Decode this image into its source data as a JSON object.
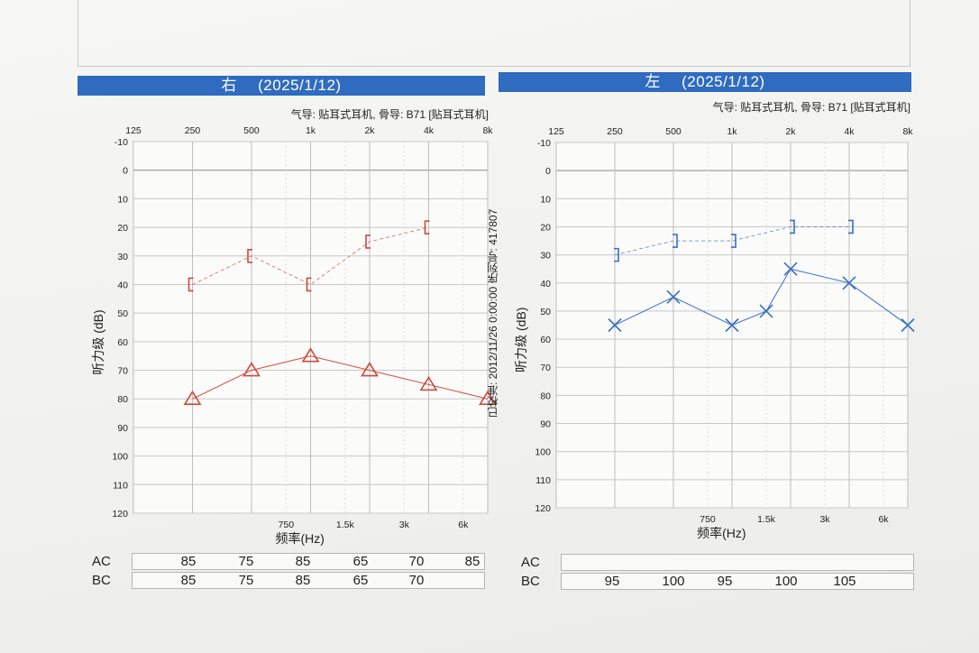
{
  "right": {
    "side": "右",
    "date": "(2025/1/12)",
    "transducer": "气导: 贴耳式耳机, 骨导: B71 [贴耳式耳机]",
    "calibration": "已校准: 2012/11/26 0:00:00 序列号: 417807"
  },
  "left": {
    "side": "左",
    "date": "(2025/1/12)",
    "transducer": "气导: 贴耳式耳机, 骨导: B71 [贴耳式耳机]"
  },
  "axes": {
    "ylabel": "听力级 (dB)",
    "xlabel": "频率(Hz)",
    "top_ticks": [
      "125",
      "250",
      "500",
      "1k",
      "2k",
      "4k",
      "8k"
    ],
    "bottom_ticks": [
      "750",
      "1.5k",
      "3k",
      "6k"
    ],
    "y_ticks": [
      "-10",
      "0",
      "10",
      "20",
      "30",
      "40",
      "50",
      "60",
      "70",
      "80",
      "90",
      "100",
      "110",
      "120"
    ]
  },
  "chart_data": [
    {
      "type": "line",
      "ear": "右",
      "x_scale": "log2",
      "xlim": [
        125,
        8000
      ],
      "ylim": [
        -10,
        120
      ],
      "y_inverted": true,
      "grid": true,
      "series": [
        {
          "symbol": "[",
          "color": "#cc4a3c",
          "dashed": true,
          "x": [
            250,
            500,
            1000,
            2000,
            4000
          ],
          "y": [
            40,
            30,
            40,
            25,
            20
          ]
        },
        {
          "symbol": "triangle",
          "color": "#cc4a3c",
          "dashed": false,
          "x": [
            250,
            500,
            1000,
            2000,
            4000,
            8000
          ],
          "y": [
            80,
            70,
            65,
            70,
            75,
            80
          ]
        }
      ]
    },
    {
      "type": "line",
      "ear": "左",
      "x_scale": "log2",
      "xlim": [
        125,
        8000
      ],
      "ylim": [
        -10,
        120
      ],
      "y_inverted": true,
      "grid": true,
      "series": [
        {
          "symbol": "]",
          "color": "#3a6fc2",
          "dashed": true,
          "x": [
            250,
            500,
            1000,
            2000,
            4000
          ],
          "y": [
            30,
            25,
            25,
            20,
            20
          ]
        },
        {
          "symbol": "x",
          "color": "#3a6fc2",
          "dashed": false,
          "x": [
            250,
            500,
            1000,
            1500,
            2000,
            4000,
            8000
          ],
          "y": [
            55,
            45,
            55,
            50,
            35,
            40,
            55
          ]
        }
      ]
    }
  ],
  "right_table": {
    "ac_label": "AC",
    "bc_label": "BC",
    "ac": [
      "85",
      "75",
      "85",
      "65",
      "70",
      "85"
    ],
    "bc": [
      "85",
      "75",
      "85",
      "65",
      "70",
      ""
    ]
  },
  "left_table": {
    "ac_label": "AC",
    "bc_label": "BC",
    "ac": [
      "",
      "",
      "",
      "",
      "",
      ""
    ],
    "bc": [
      "95",
      "100",
      "95",
      "100",
      "105",
      ""
    ]
  }
}
